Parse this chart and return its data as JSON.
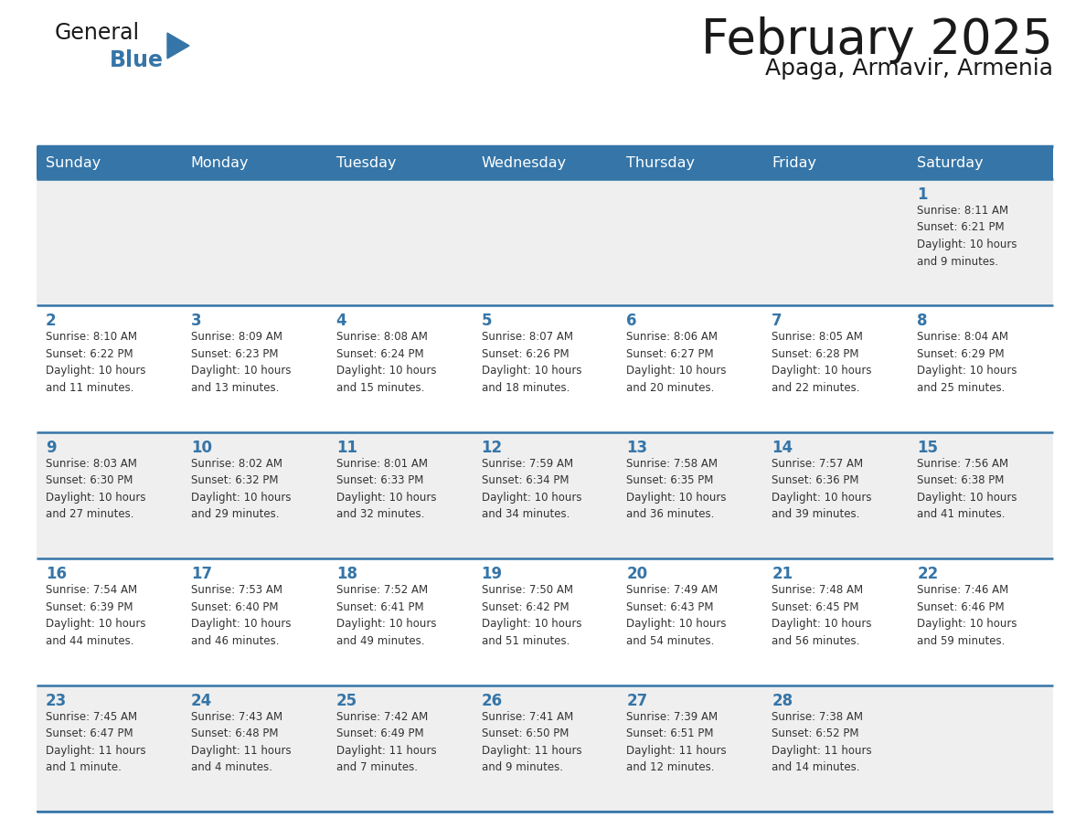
{
  "title": "February 2025",
  "subtitle": "Apaga, Armavir, Armenia",
  "header_color": "#3575a8",
  "header_text_color": "#ffffff",
  "cell_bg_even": "#efefef",
  "cell_bg_odd": "#ffffff",
  "border_color": "#3575a8",
  "day_headers": [
    "Sunday",
    "Monday",
    "Tuesday",
    "Wednesday",
    "Thursday",
    "Friday",
    "Saturday"
  ],
  "title_color": "#1a1a1a",
  "subtitle_color": "#1a1a1a",
  "day_number_color": "#3575a8",
  "cell_text_color": "#333333",
  "logo_general_color": "#1a1a1a",
  "logo_blue_color": "#3575a8",
  "logo_triangle_color": "#3575a8",
  "figsize": [
    11.88,
    9.18
  ],
  "dpi": 100,
  "calendar": [
    [
      {
        "day": 0,
        "text": ""
      },
      {
        "day": 0,
        "text": ""
      },
      {
        "day": 0,
        "text": ""
      },
      {
        "day": 0,
        "text": ""
      },
      {
        "day": 0,
        "text": ""
      },
      {
        "day": 0,
        "text": ""
      },
      {
        "day": 1,
        "text": "Sunrise: 8:11 AM\nSunset: 6:21 PM\nDaylight: 10 hours\nand 9 minutes."
      }
    ],
    [
      {
        "day": 2,
        "text": "Sunrise: 8:10 AM\nSunset: 6:22 PM\nDaylight: 10 hours\nand 11 minutes."
      },
      {
        "day": 3,
        "text": "Sunrise: 8:09 AM\nSunset: 6:23 PM\nDaylight: 10 hours\nand 13 minutes."
      },
      {
        "day": 4,
        "text": "Sunrise: 8:08 AM\nSunset: 6:24 PM\nDaylight: 10 hours\nand 15 minutes."
      },
      {
        "day": 5,
        "text": "Sunrise: 8:07 AM\nSunset: 6:26 PM\nDaylight: 10 hours\nand 18 minutes."
      },
      {
        "day": 6,
        "text": "Sunrise: 8:06 AM\nSunset: 6:27 PM\nDaylight: 10 hours\nand 20 minutes."
      },
      {
        "day": 7,
        "text": "Sunrise: 8:05 AM\nSunset: 6:28 PM\nDaylight: 10 hours\nand 22 minutes."
      },
      {
        "day": 8,
        "text": "Sunrise: 8:04 AM\nSunset: 6:29 PM\nDaylight: 10 hours\nand 25 minutes."
      }
    ],
    [
      {
        "day": 9,
        "text": "Sunrise: 8:03 AM\nSunset: 6:30 PM\nDaylight: 10 hours\nand 27 minutes."
      },
      {
        "day": 10,
        "text": "Sunrise: 8:02 AM\nSunset: 6:32 PM\nDaylight: 10 hours\nand 29 minutes."
      },
      {
        "day": 11,
        "text": "Sunrise: 8:01 AM\nSunset: 6:33 PM\nDaylight: 10 hours\nand 32 minutes."
      },
      {
        "day": 12,
        "text": "Sunrise: 7:59 AM\nSunset: 6:34 PM\nDaylight: 10 hours\nand 34 minutes."
      },
      {
        "day": 13,
        "text": "Sunrise: 7:58 AM\nSunset: 6:35 PM\nDaylight: 10 hours\nand 36 minutes."
      },
      {
        "day": 14,
        "text": "Sunrise: 7:57 AM\nSunset: 6:36 PM\nDaylight: 10 hours\nand 39 minutes."
      },
      {
        "day": 15,
        "text": "Sunrise: 7:56 AM\nSunset: 6:38 PM\nDaylight: 10 hours\nand 41 minutes."
      }
    ],
    [
      {
        "day": 16,
        "text": "Sunrise: 7:54 AM\nSunset: 6:39 PM\nDaylight: 10 hours\nand 44 minutes."
      },
      {
        "day": 17,
        "text": "Sunrise: 7:53 AM\nSunset: 6:40 PM\nDaylight: 10 hours\nand 46 minutes."
      },
      {
        "day": 18,
        "text": "Sunrise: 7:52 AM\nSunset: 6:41 PM\nDaylight: 10 hours\nand 49 minutes."
      },
      {
        "day": 19,
        "text": "Sunrise: 7:50 AM\nSunset: 6:42 PM\nDaylight: 10 hours\nand 51 minutes."
      },
      {
        "day": 20,
        "text": "Sunrise: 7:49 AM\nSunset: 6:43 PM\nDaylight: 10 hours\nand 54 minutes."
      },
      {
        "day": 21,
        "text": "Sunrise: 7:48 AM\nSunset: 6:45 PM\nDaylight: 10 hours\nand 56 minutes."
      },
      {
        "day": 22,
        "text": "Sunrise: 7:46 AM\nSunset: 6:46 PM\nDaylight: 10 hours\nand 59 minutes."
      }
    ],
    [
      {
        "day": 23,
        "text": "Sunrise: 7:45 AM\nSunset: 6:47 PM\nDaylight: 11 hours\nand 1 minute."
      },
      {
        "day": 24,
        "text": "Sunrise: 7:43 AM\nSunset: 6:48 PM\nDaylight: 11 hours\nand 4 minutes."
      },
      {
        "day": 25,
        "text": "Sunrise: 7:42 AM\nSunset: 6:49 PM\nDaylight: 11 hours\nand 7 minutes."
      },
      {
        "day": 26,
        "text": "Sunrise: 7:41 AM\nSunset: 6:50 PM\nDaylight: 11 hours\nand 9 minutes."
      },
      {
        "day": 27,
        "text": "Sunrise: 7:39 AM\nSunset: 6:51 PM\nDaylight: 11 hours\nand 12 minutes."
      },
      {
        "day": 28,
        "text": "Sunrise: 7:38 AM\nSunset: 6:52 PM\nDaylight: 11 hours\nand 14 minutes."
      },
      {
        "day": 0,
        "text": ""
      }
    ]
  ]
}
